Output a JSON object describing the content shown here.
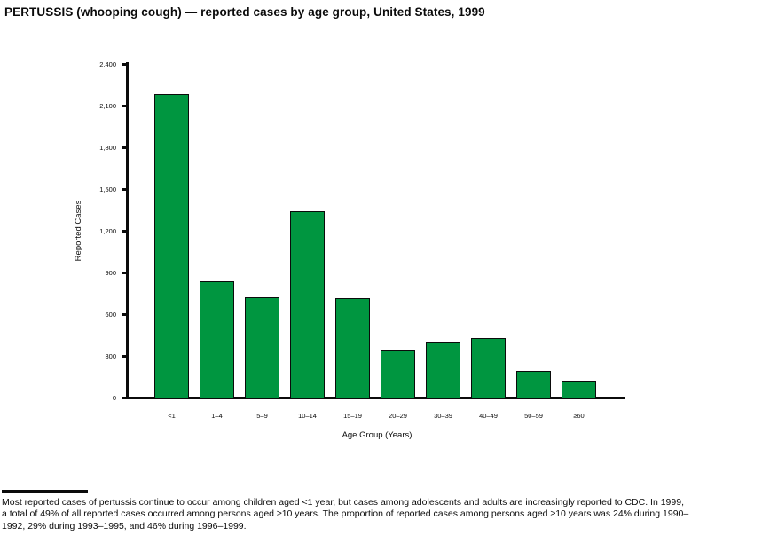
{
  "title": "PERTUSSIS (whooping cough) — reported cases by age group, United States, 1999",
  "chart_data": {
    "type": "bar",
    "categories": [
      "<1",
      "1–4",
      "5–9",
      "10–14",
      "15–19",
      "20–29",
      "30–39",
      "40–49",
      "50–59",
      "≥60"
    ],
    "values": [
      2190,
      840,
      730,
      1345,
      720,
      350,
      410,
      435,
      195,
      125
    ],
    "title": "PERTUSSIS (whooping cough) — reported cases by age group, United States, 1999",
    "xlabel": "Age Group (Years)",
    "ylabel": "Reported Cases",
    "ylim": [
      0,
      2400
    ],
    "ytick_step": 300,
    "ytick_labels": [
      "0",
      "300",
      "600",
      "900",
      "1,200",
      "1,500",
      "1,800",
      "2,100",
      "2,400"
    ],
    "bar_color": "#009640",
    "bar_border_color": "#0b0b0b",
    "grid": false,
    "legend": "none"
  },
  "footer": {
    "lines": [
      "Most reported cases of pertussis continue to occur among children aged <1 year, but cases among adolescents and adults are increasingly reported to CDC. In 1999,",
      "a total of 49% of all reported cases occurred among persons aged ≥10 years. The proportion of reported cases among persons aged ≥10 years was 24% during 1990–",
      "1992, 29% during 1993–1995, and 46% during 1996–1999."
    ]
  }
}
